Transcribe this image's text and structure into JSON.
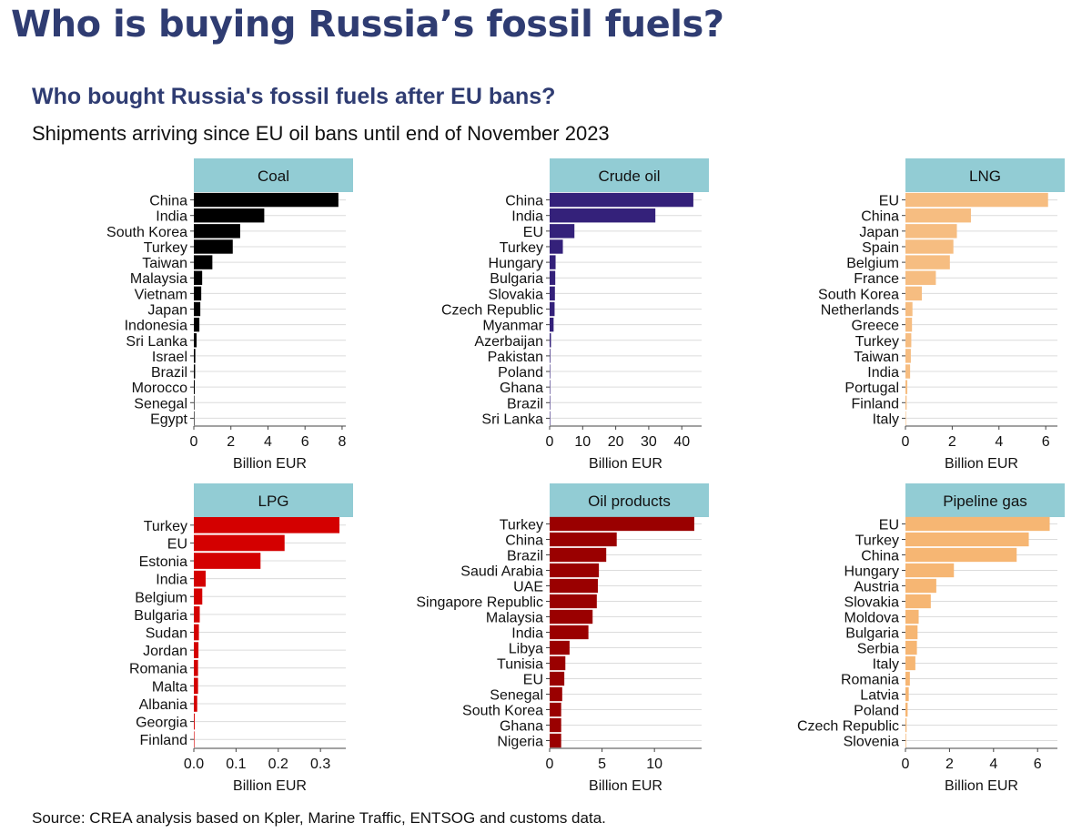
{
  "header": {
    "title": "Who is buying Russia’s fossil fuels?"
  },
  "chart_title": "Who bought Russia's fossil fuels after EU bans?",
  "chart_subtitle": "Shipments arriving since EU oil bans until end of November 2023",
  "source": "Source: CREA analysis based on Kpler, Marine Traffic, ENTSOG and customs data.",
  "colors": {
    "strip_bg": "#92ccd4",
    "grid": "#dcdcdc",
    "Coal": "#000000",
    "Crude oil": "#34217a",
    "LNG": "#f6bd81",
    "LPG": "#d40000",
    "Oil products": "#9a0000",
    "Pipeline gas": "#f6b673"
  },
  "chart_data": [
    {
      "type": "bar",
      "orientation": "horizontal",
      "title": "Coal",
      "xlabel": "Billion EUR",
      "xlim": [
        0,
        8.2
      ],
      "ticks": [
        0,
        2,
        4,
        6,
        8
      ],
      "tick_labels": [
        "0",
        "2",
        "4",
        "6",
        "8"
      ],
      "categories": [
        "China",
        "India",
        "South Korea",
        "Turkey",
        "Taiwan",
        "Malaysia",
        "Vietnam",
        "Japan",
        "Indonesia",
        "Sri Lanka",
        "Israel",
        "Brazil",
        "Morocco",
        "Senegal",
        "Egypt"
      ],
      "values": [
        7.8,
        3.8,
        2.5,
        2.1,
        1.0,
        0.45,
        0.4,
        0.35,
        0.3,
        0.15,
        0.08,
        0.07,
        0.05,
        0.03,
        0.02
      ]
    },
    {
      "type": "bar",
      "orientation": "horizontal",
      "title": "Crude oil",
      "xlabel": "Billion EUR",
      "xlim": [
        0,
        46
      ],
      "ticks": [
        0,
        10,
        20,
        30,
        40
      ],
      "tick_labels": [
        "0",
        "10",
        "20",
        "30",
        "40"
      ],
      "categories": [
        "China",
        "India",
        "EU",
        "Turkey",
        "Hungary",
        "Bulgaria",
        "Slovakia",
        "Czech Republic",
        "Myanmar",
        "Azerbaijan",
        "Pakistan",
        "Poland",
        "Ghana",
        "Brazil",
        "Sri Lanka"
      ],
      "values": [
        43.5,
        32,
        7.5,
        4,
        1.8,
        1.7,
        1.6,
        1.5,
        1.2,
        0.4,
        0.2,
        0.15,
        0.1,
        0.08,
        0.05
      ]
    },
    {
      "type": "bar",
      "orientation": "horizontal",
      "title": "LNG",
      "xlabel": "Billion EUR",
      "xlim": [
        0,
        6.5
      ],
      "ticks": [
        0,
        2,
        4,
        6
      ],
      "tick_labels": [
        "0",
        "2",
        "4",
        "6"
      ],
      "categories": [
        "EU",
        "China",
        "Japan",
        "Spain",
        "Belgium",
        "France",
        "South Korea",
        "Netherlands",
        "Greece",
        "Turkey",
        "Taiwan",
        "India",
        "Portugal",
        "Finland",
        "Italy"
      ],
      "values": [
        6.1,
        2.8,
        2.2,
        2.05,
        1.9,
        1.3,
        0.7,
        0.3,
        0.28,
        0.25,
        0.23,
        0.2,
        0.08,
        0.05,
        0.02
      ]
    },
    {
      "type": "bar",
      "orientation": "horizontal",
      "title": "LPG",
      "xlabel": "Billion EUR",
      "xlim": [
        0,
        0.36
      ],
      "ticks": [
        0,
        0.1,
        0.2,
        0.3
      ],
      "tick_labels": [
        "0.0",
        "0.1",
        "0.2",
        "0.3"
      ],
      "categories": [
        "Turkey",
        "EU",
        "Estonia",
        "India",
        "Belgium",
        "Bulgaria",
        "Sudan",
        "Jordan",
        "Romania",
        "Malta",
        "Albania",
        "Georgia",
        "Finland"
      ],
      "values": [
        0.345,
        0.215,
        0.158,
        0.028,
        0.02,
        0.014,
        0.012,
        0.011,
        0.01,
        0.01,
        0.008,
        0.002,
        0.001
      ]
    },
    {
      "type": "bar",
      "orientation": "horizontal",
      "title": "Oil products",
      "xlabel": "Billion EUR",
      "xlim": [
        0,
        14.5
      ],
      "ticks": [
        0,
        5,
        10
      ],
      "tick_labels": [
        "0",
        "5",
        "10"
      ],
      "categories": [
        "Turkey",
        "China",
        "Brazil",
        "Saudi Arabia",
        "UAE",
        "Singapore Republic",
        "Malaysia",
        "India",
        "Libya",
        "Tunisia",
        "EU",
        "Senegal",
        "South Korea",
        "Ghana",
        "Nigeria"
      ],
      "values": [
        13.8,
        6.4,
        5.4,
        4.7,
        4.6,
        4.5,
        4.1,
        3.7,
        1.9,
        1.5,
        1.4,
        1.2,
        1.1,
        1.1,
        1.1
      ]
    },
    {
      "type": "bar",
      "orientation": "horizontal",
      "title": "Pipeline gas",
      "xlabel": "Billion EUR",
      "xlim": [
        0,
        6.9
      ],
      "ticks": [
        0,
        2,
        4,
        6
      ],
      "tick_labels": [
        "0",
        "2",
        "4",
        "6"
      ],
      "categories": [
        "EU",
        "Turkey",
        "China",
        "Hungary",
        "Austria",
        "Slovakia",
        "Moldova",
        "Bulgaria",
        "Serbia",
        "Italy",
        "Romania",
        "Latvia",
        "Poland",
        "Czech Republic",
        "Slovenia"
      ],
      "values": [
        6.55,
        5.6,
        5.05,
        2.2,
        1.4,
        1.15,
        0.6,
        0.55,
        0.52,
        0.45,
        0.2,
        0.15,
        0.1,
        0.05,
        0.03
      ]
    }
  ]
}
